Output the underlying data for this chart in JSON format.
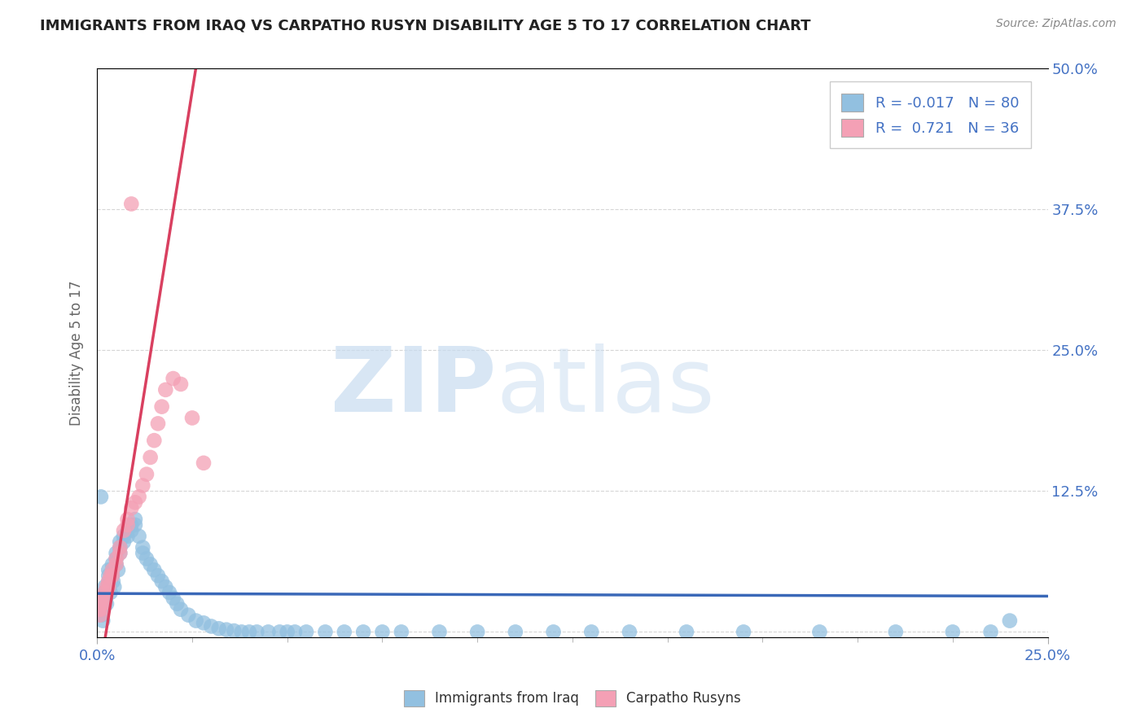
{
  "title": "IMMIGRANTS FROM IRAQ VS CARPATHO RUSYN DISABILITY AGE 5 TO 17 CORRELATION CHART",
  "source": "Source: ZipAtlas.com",
  "ylabel_label": "Disability Age 5 to 17",
  "legend_blue_label": "Immigrants from Iraq",
  "legend_pink_label": "Carpatho Rusyns",
  "r_blue": -0.017,
  "n_blue": 80,
  "r_pink": 0.721,
  "n_pink": 36,
  "blue_color": "#92C0E0",
  "pink_color": "#F4A0B5",
  "trend_blue_color": "#3A68B8",
  "trend_pink_color": "#D94060",
  "watermark_zip": "ZIP",
  "watermark_atlas": "atlas",
  "background_color": "#FFFFFF",
  "xlim": [
    0.0,
    0.25
  ],
  "ylim": [
    -0.005,
    0.5
  ],
  "blue_scatter_x": [
    0.0008,
    0.001,
    0.0012,
    0.0015,
    0.002,
    0.002,
    0.0022,
    0.0025,
    0.003,
    0.003,
    0.003,
    0.0032,
    0.0035,
    0.004,
    0.004,
    0.004,
    0.0042,
    0.0045,
    0.005,
    0.005,
    0.005,
    0.0055,
    0.006,
    0.006,
    0.006,
    0.007,
    0.007,
    0.008,
    0.008,
    0.009,
    0.009,
    0.01,
    0.01,
    0.011,
    0.012,
    0.012,
    0.013,
    0.014,
    0.015,
    0.016,
    0.017,
    0.018,
    0.019,
    0.02,
    0.021,
    0.022,
    0.024,
    0.026,
    0.028,
    0.03,
    0.032,
    0.034,
    0.036,
    0.038,
    0.04,
    0.042,
    0.045,
    0.048,
    0.05,
    0.052,
    0.055,
    0.06,
    0.065,
    0.07,
    0.075,
    0.08,
    0.09,
    0.1,
    0.11,
    0.12,
    0.13,
    0.14,
    0.155,
    0.17,
    0.19,
    0.21,
    0.225,
    0.235,
    0.24,
    0.001
  ],
  "blue_scatter_y": [
    0.025,
    0.02,
    0.015,
    0.01,
    0.04,
    0.035,
    0.03,
    0.025,
    0.055,
    0.05,
    0.045,
    0.04,
    0.035,
    0.06,
    0.055,
    0.05,
    0.045,
    0.04,
    0.07,
    0.065,
    0.06,
    0.055,
    0.08,
    0.075,
    0.07,
    0.085,
    0.08,
    0.09,
    0.085,
    0.095,
    0.09,
    0.1,
    0.095,
    0.085,
    0.075,
    0.07,
    0.065,
    0.06,
    0.055,
    0.05,
    0.045,
    0.04,
    0.035,
    0.03,
    0.025,
    0.02,
    0.015,
    0.01,
    0.008,
    0.005,
    0.003,
    0.002,
    0.001,
    0.0,
    0.0,
    0.0,
    0.0,
    0.0,
    0.0,
    0.0,
    0.0,
    0.0,
    0.0,
    0.0,
    0.0,
    0.0,
    0.0,
    0.0,
    0.0,
    0.0,
    0.0,
    0.0,
    0.0,
    0.0,
    0.0,
    0.0,
    0.0,
    0.0,
    0.01,
    0.12
  ],
  "pink_scatter_x": [
    0.0005,
    0.0008,
    0.001,
    0.001,
    0.0012,
    0.0015,
    0.002,
    0.002,
    0.0025,
    0.003,
    0.003,
    0.0035,
    0.004,
    0.004,
    0.005,
    0.005,
    0.006,
    0.006,
    0.007,
    0.008,
    0.008,
    0.009,
    0.009,
    0.01,
    0.011,
    0.012,
    0.013,
    0.014,
    0.015,
    0.016,
    0.017,
    0.018,
    0.02,
    0.022,
    0.025,
    0.028
  ],
  "pink_scatter_y": [
    0.02,
    0.015,
    0.025,
    0.02,
    0.03,
    0.025,
    0.035,
    0.03,
    0.04,
    0.045,
    0.04,
    0.05,
    0.055,
    0.05,
    0.065,
    0.06,
    0.075,
    0.07,
    0.09,
    0.1,
    0.095,
    0.11,
    0.38,
    0.115,
    0.12,
    0.13,
    0.14,
    0.155,
    0.17,
    0.185,
    0.2,
    0.215,
    0.225,
    0.22,
    0.19,
    0.15
  ]
}
